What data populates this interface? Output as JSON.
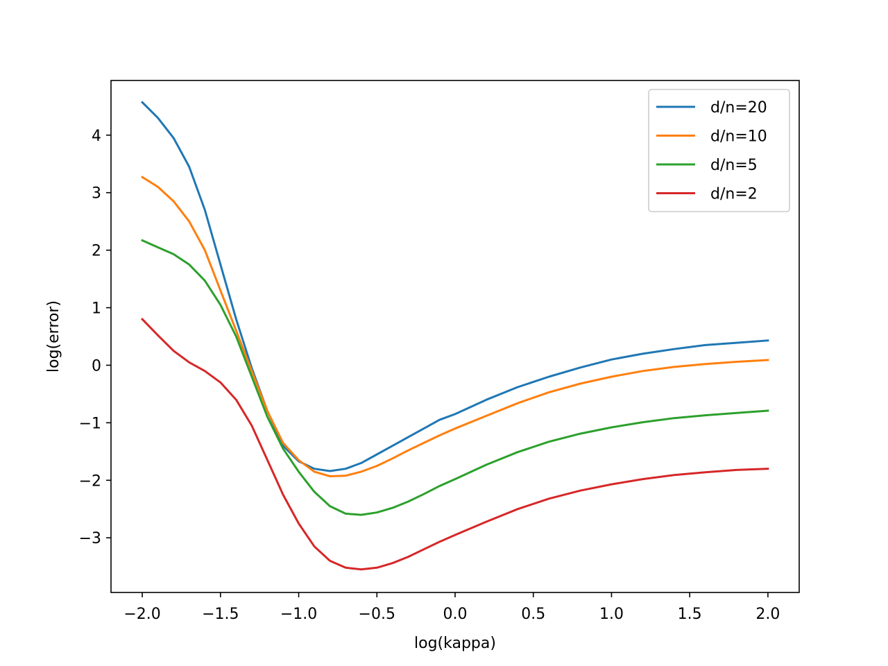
{
  "chart_data": {
    "type": "line",
    "title": "",
    "xlabel": "log(kappa)",
    "ylabel": "log(error)",
    "xlim": [
      -2.2,
      2.2
    ],
    "ylim": [
      -3.95,
      4.95
    ],
    "xticks": [
      -2.0,
      -1.5,
      -1.0,
      -0.5,
      0.0,
      0.5,
      1.0,
      1.5,
      2.0
    ],
    "xtick_labels": [
      "−2.0",
      "−1.5",
      "−1.0",
      "−0.5",
      "0.0",
      "0.5",
      "1.0",
      "1.5",
      "2.0"
    ],
    "yticks": [
      -3,
      -2,
      -1,
      0,
      1,
      2,
      3,
      4
    ],
    "ytick_labels": [
      "−3",
      "−2",
      "−1",
      "0",
      "1",
      "2",
      "3",
      "4"
    ],
    "grid": false,
    "legend_position": "top-right",
    "x": [
      -2.0,
      -1.9,
      -1.8,
      -1.7,
      -1.6,
      -1.5,
      -1.4,
      -1.3,
      -1.2,
      -1.1,
      -1.0,
      -0.9,
      -0.8,
      -0.7,
      -0.6,
      -0.5,
      -0.4,
      -0.3,
      -0.2,
      -0.1,
      0.0,
      0.2,
      0.4,
      0.6,
      0.8,
      1.0,
      1.2,
      1.4,
      1.6,
      1.8,
      2.0
    ],
    "series": [
      {
        "name": "d/n=20",
        "color": "#1f77b4",
        "values": [
          4.57,
          4.3,
          3.95,
          3.45,
          2.7,
          1.75,
          0.8,
          -0.05,
          -0.8,
          -1.4,
          -1.67,
          -1.8,
          -1.84,
          -1.8,
          -1.7,
          -1.55,
          -1.4,
          -1.25,
          -1.1,
          -0.95,
          -0.85,
          -0.6,
          -0.38,
          -0.2,
          -0.04,
          0.1,
          0.2,
          0.28,
          0.35,
          0.39,
          0.43
        ]
      },
      {
        "name": "d/n=10",
        "color": "#ff7f0e",
        "values": [
          3.27,
          3.1,
          2.85,
          2.5,
          2.0,
          1.3,
          0.6,
          -0.1,
          -0.8,
          -1.35,
          -1.65,
          -1.85,
          -1.93,
          -1.92,
          -1.85,
          -1.75,
          -1.62,
          -1.48,
          -1.35,
          -1.22,
          -1.1,
          -0.88,
          -0.66,
          -0.47,
          -0.32,
          -0.2,
          -0.1,
          -0.03,
          0.02,
          0.06,
          0.09
        ]
      },
      {
        "name": "d/n=5",
        "color": "#2ca02c",
        "values": [
          2.17,
          2.05,
          1.93,
          1.75,
          1.47,
          1.05,
          0.5,
          -0.2,
          -0.9,
          -1.45,
          -1.85,
          -2.2,
          -2.45,
          -2.58,
          -2.6,
          -2.56,
          -2.48,
          -2.37,
          -2.24,
          -2.1,
          -1.98,
          -1.73,
          -1.51,
          -1.33,
          -1.19,
          -1.08,
          -0.99,
          -0.92,
          -0.87,
          -0.83,
          -0.79
        ]
      },
      {
        "name": "d/n=2",
        "color": "#d62728",
        "values": [
          0.8,
          0.52,
          0.25,
          0.05,
          -0.1,
          -0.3,
          -0.6,
          -1.05,
          -1.65,
          -2.25,
          -2.75,
          -3.15,
          -3.4,
          -3.52,
          -3.55,
          -3.52,
          -3.44,
          -3.33,
          -3.2,
          -3.07,
          -2.95,
          -2.72,
          -2.5,
          -2.32,
          -2.18,
          -2.07,
          -1.98,
          -1.91,
          -1.86,
          -1.82,
          -1.8
        ]
      }
    ]
  }
}
